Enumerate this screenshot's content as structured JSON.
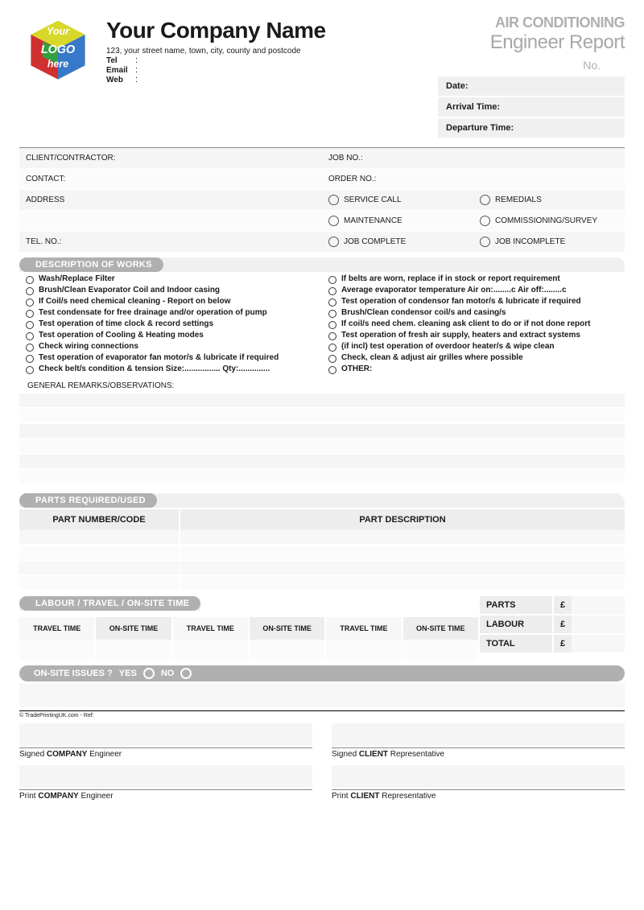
{
  "header": {
    "company_name": "Your Company Name",
    "address": "123, your street name, town, city, county and postcode",
    "tel_label": "Tel",
    "email_label": "Email",
    "web_label": "Web",
    "colon": ":",
    "report_title1": "AIR CONDITIONING",
    "report_title2": "Engineer Report",
    "no_label": "No.",
    "logo_text_top": "Your",
    "logo_text_mid": "LOGO",
    "logo_text_bot": "here",
    "logo_colors": {
      "top": "#d8d82a",
      "left": "#d03030",
      "right": "#3878c8",
      "front": "#30a040"
    }
  },
  "datebox": {
    "date": "Date:",
    "arrival": "Arrival Time:",
    "departure": "Departure Time:"
  },
  "info_left": {
    "client": "CLIENT/CONTRACTOR:",
    "contact": "CONTACT:",
    "address": "ADDRESS",
    "tel": "TEL. NO.:"
  },
  "info_right": {
    "job": "JOB NO.:",
    "order": "ORDER NO.:",
    "r1a": "SERVICE CALL",
    "r1b": "REMEDIALS",
    "r2a": "MAINTENANCE",
    "r2b": "COMMISSIONING/SURVEY",
    "r3a": "JOB COMPLETE",
    "r3b": "JOB INCOMPLETE"
  },
  "works": {
    "title": "DESCRIPTION OF WORKS",
    "left": [
      "Wash/Replace Filter",
      "Brush/Clean Evaporator Coil and Indoor casing",
      "If Coil/s need chemical cleaning - Report on below",
      "Test condensate for free drainage and/or operation of pump",
      "Test operation of time clock & record settings",
      "Test operation of Cooling & Heating modes",
      "Check wiring connections",
      "Test operation of evaporator fan motor/s & lubricate if required",
      "Check belt/s condition & tension      Size:................   Qty:.............."
    ],
    "right": [
      "If belts are worn, replace if in stock or report requirement",
      "Average evaporator temperature   Air on:........c   Air off:........c",
      "Test operation of condensor fan motor/s & lubricate if required",
      "Brush/Clean condensor coil/s and casing/s",
      "If coil/s need chem. cleaning ask client to do or if not done report",
      "Test operation of fresh air supply, heaters and extract systems",
      "(if incl) test operation of overdoor heater/s & wipe clean",
      "Check, clean & adjust air grilles where possible",
      "OTHER:"
    ],
    "remarks_label": "GENERAL REMARKS/OBSERVATIONS:"
  },
  "parts": {
    "title": "PARTS REQUIRED/USED",
    "col1": "PART NUMBER/CODE",
    "col2": "PART DESCRIPTION",
    "row_count": 4
  },
  "labour": {
    "title": "LABOUR / TRAVEL / ON-SITE TIME",
    "travel": "TRAVEL TIME",
    "onsite": "ON-SITE TIME"
  },
  "totals": {
    "parts": "PARTS",
    "labour": "LABOUR",
    "total": "TOTAL",
    "currency": "£"
  },
  "issues": {
    "label": "ON-SITE ISSUES ?",
    "yes": "YES",
    "no": "NO"
  },
  "ref": "© TradePrintingUK.com - Ref:",
  "sigs": {
    "s1a": "Signed ",
    "s1b": "COMPANY",
    "s1c": " Engineer",
    "s2a": "Signed ",
    "s2b": "CLIENT",
    "s2c": " Representative",
    "p1a": "Print ",
    "p1b": "COMPANY",
    "p1c": " Engineer",
    "p2a": "Print ",
    "p2b": "CLIENT",
    "p2c": " Representative"
  },
  "styling": {
    "page_bg": "#ffffff",
    "stripe_a": "#f5f5f5",
    "stripe_b": "#fbfbfb",
    "header_gray": "#ededed",
    "pill_gray": "#b0b0b0",
    "text": "#1a1a1a",
    "light_text": "#a8a8a8"
  }
}
